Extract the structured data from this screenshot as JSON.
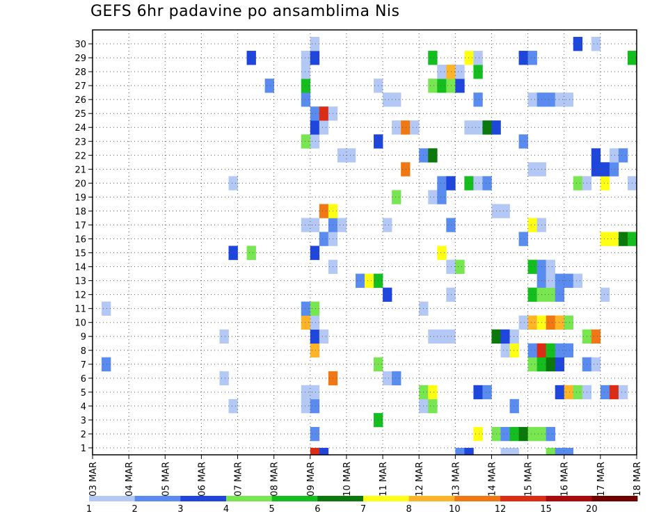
{
  "chart_data": {
    "type": "heatmap",
    "title": "GEFS 6hr padavine po ansamblima Nis",
    "xlabel": "",
    "ylabel": "",
    "x_ticks": [
      "03 MAR",
      "04 MAR",
      "05 MAR",
      "06 MAR",
      "07 MAR",
      "08 MAR",
      "09 MAR",
      "10 MAR",
      "11 MAR",
      "12 MAR",
      "13 MAR",
      "14 MAR",
      "15 MAR",
      "16 MAR",
      "17 MAR",
      "18 MAR"
    ],
    "y_ticks": [
      "1",
      "2",
      "3",
      "4",
      "5",
      "6",
      "7",
      "8",
      "9",
      "10",
      "11",
      "12",
      "13",
      "14",
      "15",
      "16",
      "17",
      "18",
      "19",
      "20",
      "21",
      "22",
      "23",
      "24",
      "25",
      "26",
      "27",
      "28",
      "29",
      "30"
    ],
    "x_steps": 60,
    "y_members": 30,
    "grid": true,
    "legend": {
      "placement": "bottom",
      "labels": [
        "1",
        "2",
        "3",
        "4",
        "5",
        "6",
        "7",
        "8",
        "10",
        "12",
        "15",
        "20"
      ],
      "colors": [
        "#b4c8f5",
        "#5a8cf0",
        "#1e46dc",
        "#78e650",
        "#14be1e",
        "#0a780a",
        "#ffff14",
        "#ffb428",
        "#f07814",
        "#dc2d14",
        "#aa0a0a",
        "#6e0000"
      ]
    },
    "cells": [
      [
        24,
        0,
        "#dc2d14"
      ],
      [
        25,
        0,
        "#1e46dc"
      ],
      [
        40,
        0,
        "#5a8cf0"
      ],
      [
        41,
        0,
        "#1e46dc"
      ],
      [
        45,
        0,
        "#b4c8f5"
      ],
      [
        46,
        0,
        "#b4c8f5"
      ],
      [
        50,
        0,
        "#78e650"
      ],
      [
        51,
        0,
        "#5a8cf0"
      ],
      [
        52,
        0,
        "#5a8cf0"
      ],
      [
        24,
        1,
        "#5a8cf0"
      ],
      [
        42,
        1,
        "#ffff14"
      ],
      [
        44,
        1,
        "#78e650"
      ],
      [
        45,
        1,
        "#5a8cf0"
      ],
      [
        46,
        1,
        "#14be1e"
      ],
      [
        47,
        1,
        "#0a780a"
      ],
      [
        48,
        1,
        "#78e650"
      ],
      [
        49,
        1,
        "#78e650"
      ],
      [
        50,
        1,
        "#5a8cf0"
      ],
      [
        31,
        2,
        "#14be1e"
      ],
      [
        15,
        3,
        "#b4c8f5"
      ],
      [
        23,
        3,
        "#b4c8f5"
      ],
      [
        24,
        3,
        "#5a8cf0"
      ],
      [
        36,
        3,
        "#b4c8f5"
      ],
      [
        37,
        3,
        "#78e650"
      ],
      [
        46,
        3,
        "#5a8cf0"
      ],
      [
        23,
        4,
        "#b4c8f5"
      ],
      [
        24,
        4,
        "#b4c8f5"
      ],
      [
        36,
        4,
        "#78e650"
      ],
      [
        37,
        4,
        "#ffff14"
      ],
      [
        42,
        4,
        "#1e46dc"
      ],
      [
        43,
        4,
        "#5a8cf0"
      ],
      [
        51,
        4,
        "#1e46dc"
      ],
      [
        52,
        4,
        "#ffb428"
      ],
      [
        53,
        4,
        "#78e650"
      ],
      [
        54,
        4,
        "#b4c8f5"
      ],
      [
        56,
        4,
        "#5a8cf0"
      ],
      [
        57,
        4,
        "#dc2d14"
      ],
      [
        58,
        4,
        "#b4c8f5"
      ],
      [
        14,
        5,
        "#b4c8f5"
      ],
      [
        26,
        5,
        "#f07814"
      ],
      [
        32,
        5,
        "#b4c8f5"
      ],
      [
        33,
        5,
        "#5a8cf0"
      ],
      [
        1,
        6,
        "#5a8cf0"
      ],
      [
        31,
        6,
        "#78e650"
      ],
      [
        48,
        6,
        "#78e650"
      ],
      [
        49,
        6,
        "#14be1e"
      ],
      [
        50,
        6,
        "#0a780a"
      ],
      [
        51,
        6,
        "#1e46dc"
      ],
      [
        54,
        6,
        "#5a8cf0"
      ],
      [
        55,
        6,
        "#b4c8f5"
      ],
      [
        24,
        7,
        "#ffb428"
      ],
      [
        45,
        7,
        "#b4c8f5"
      ],
      [
        46,
        7,
        "#ffff14"
      ],
      [
        48,
        7,
        "#5a8cf0"
      ],
      [
        49,
        7,
        "#dc2d14"
      ],
      [
        50,
        7,
        "#14be1e"
      ],
      [
        51,
        7,
        "#5a8cf0"
      ],
      [
        52,
        7,
        "#5a8cf0"
      ],
      [
        14,
        8,
        "#b4c8f5"
      ],
      [
        24,
        8,
        "#1e46dc"
      ],
      [
        25,
        8,
        "#b4c8f5"
      ],
      [
        37,
        8,
        "#b4c8f5"
      ],
      [
        38,
        8,
        "#b4c8f5"
      ],
      [
        39,
        8,
        "#b4c8f5"
      ],
      [
        44,
        8,
        "#0a780a"
      ],
      [
        45,
        8,
        "#1e46dc"
      ],
      [
        46,
        8,
        "#b4c8f5"
      ],
      [
        54,
        8,
        "#78e650"
      ],
      [
        55,
        8,
        "#f07814"
      ],
      [
        23,
        9,
        "#ffb428"
      ],
      [
        24,
        9,
        "#b4c8f5"
      ],
      [
        47,
        9,
        "#b4c8f5"
      ],
      [
        48,
        9,
        "#ffb428"
      ],
      [
        49,
        9,
        "#ffff14"
      ],
      [
        50,
        9,
        "#f07814"
      ],
      [
        51,
        9,
        "#ffb428"
      ],
      [
        52,
        9,
        "#78e650"
      ],
      [
        1,
        10,
        "#b4c8f5"
      ],
      [
        23,
        10,
        "#5a8cf0"
      ],
      [
        24,
        10,
        "#78e650"
      ],
      [
        36,
        10,
        "#b4c8f5"
      ],
      [
        32,
        11,
        "#1e46dc"
      ],
      [
        39,
        11,
        "#b4c8f5"
      ],
      [
        48,
        11,
        "#14be1e"
      ],
      [
        49,
        11,
        "#78e650"
      ],
      [
        50,
        11,
        "#78e650"
      ],
      [
        51,
        11,
        "#5a8cf0"
      ],
      [
        56,
        11,
        "#b4c8f5"
      ],
      [
        29,
        12,
        "#5a8cf0"
      ],
      [
        30,
        12,
        "#ffff14"
      ],
      [
        31,
        12,
        "#14be1e"
      ],
      [
        49,
        12,
        "#5a8cf0"
      ],
      [
        50,
        12,
        "#b4c8f5"
      ],
      [
        51,
        12,
        "#5a8cf0"
      ],
      [
        52,
        12,
        "#5a8cf0"
      ],
      [
        53,
        12,
        "#b4c8f5"
      ],
      [
        26,
        13,
        "#b4c8f5"
      ],
      [
        39,
        13,
        "#b4c8f5"
      ],
      [
        40,
        13,
        "#78e650"
      ],
      [
        48,
        13,
        "#14be1e"
      ],
      [
        49,
        13,
        "#5a8cf0"
      ],
      [
        50,
        13,
        "#b4c8f5"
      ],
      [
        15,
        14,
        "#1e46dc"
      ],
      [
        17,
        14,
        "#78e650"
      ],
      [
        24,
        14,
        "#1e46dc"
      ],
      [
        38,
        14,
        "#ffff14"
      ],
      [
        25,
        15,
        "#5a8cf0"
      ],
      [
        26,
        15,
        "#b4c8f5"
      ],
      [
        47,
        15,
        "#5a8cf0"
      ],
      [
        56,
        15,
        "#ffff14"
      ],
      [
        57,
        15,
        "#ffff14"
      ],
      [
        58,
        15,
        "#0a780a"
      ],
      [
        59,
        15,
        "#14be1e"
      ],
      [
        23,
        16,
        "#b4c8f5"
      ],
      [
        24,
        16,
        "#b4c8f5"
      ],
      [
        26,
        16,
        "#5a8cf0"
      ],
      [
        27,
        16,
        "#b4c8f5"
      ],
      [
        32,
        16,
        "#b4c8f5"
      ],
      [
        39,
        16,
        "#5a8cf0"
      ],
      [
        48,
        16,
        "#ffff14"
      ],
      [
        49,
        16,
        "#b4c8f5"
      ],
      [
        25,
        17,
        "#f07814"
      ],
      [
        26,
        17,
        "#ffff14"
      ],
      [
        44,
        17,
        "#b4c8f5"
      ],
      [
        45,
        17,
        "#b4c8f5"
      ],
      [
        33,
        18,
        "#78e650"
      ],
      [
        37,
        18,
        "#b4c8f5"
      ],
      [
        38,
        18,
        "#5a8cf0"
      ],
      [
        15,
        19,
        "#b4c8f5"
      ],
      [
        38,
        19,
        "#5a8cf0"
      ],
      [
        39,
        19,
        "#1e46dc"
      ],
      [
        41,
        19,
        "#14be1e"
      ],
      [
        42,
        19,
        "#b4c8f5"
      ],
      [
        43,
        19,
        "#5a8cf0"
      ],
      [
        53,
        19,
        "#78e650"
      ],
      [
        54,
        19,
        "#b4c8f5"
      ],
      [
        56,
        19,
        "#ffff14"
      ],
      [
        59,
        19,
        "#b4c8f5"
      ],
      [
        34,
        20,
        "#f07814"
      ],
      [
        48,
        20,
        "#b4c8f5"
      ],
      [
        49,
        20,
        "#b4c8f5"
      ],
      [
        55,
        20,
        "#1e46dc"
      ],
      [
        56,
        20,
        "#1e46dc"
      ],
      [
        57,
        20,
        "#5a8cf0"
      ],
      [
        27,
        21,
        "#b4c8f5"
      ],
      [
        28,
        21,
        "#b4c8f5"
      ],
      [
        36,
        21,
        "#5a8cf0"
      ],
      [
        37,
        21,
        "#0a780a"
      ],
      [
        55,
        21,
        "#1e46dc"
      ],
      [
        57,
        21,
        "#b4c8f5"
      ],
      [
        58,
        21,
        "#5a8cf0"
      ],
      [
        23,
        22,
        "#78e650"
      ],
      [
        24,
        22,
        "#b4c8f5"
      ],
      [
        31,
        22,
        "#1e46dc"
      ],
      [
        47,
        22,
        "#5a8cf0"
      ],
      [
        24,
        23,
        "#1e46dc"
      ],
      [
        25,
        23,
        "#b4c8f5"
      ],
      [
        33,
        23,
        "#b4c8f5"
      ],
      [
        34,
        23,
        "#f07814"
      ],
      [
        35,
        23,
        "#b4c8f5"
      ],
      [
        41,
        23,
        "#b4c8f5"
      ],
      [
        42,
        23,
        "#b4c8f5"
      ],
      [
        43,
        23,
        "#0a780a"
      ],
      [
        44,
        23,
        "#1e46dc"
      ],
      [
        24,
        24,
        "#5a8cf0"
      ],
      [
        25,
        24,
        "#dc2d14"
      ],
      [
        26,
        24,
        "#b4c8f5"
      ],
      [
        23,
        25,
        "#5a8cf0"
      ],
      [
        32,
        25,
        "#b4c8f5"
      ],
      [
        33,
        25,
        "#b4c8f5"
      ],
      [
        42,
        25,
        "#5a8cf0"
      ],
      [
        48,
        25,
        "#b4c8f5"
      ],
      [
        49,
        25,
        "#5a8cf0"
      ],
      [
        50,
        25,
        "#5a8cf0"
      ],
      [
        51,
        25,
        "#b4c8f5"
      ],
      [
        52,
        25,
        "#b4c8f5"
      ],
      [
        19,
        26,
        "#5a8cf0"
      ],
      [
        23,
        26,
        "#14be1e"
      ],
      [
        31,
        26,
        "#b4c8f5"
      ],
      [
        37,
        26,
        "#78e650"
      ],
      [
        38,
        26,
        "#14be1e"
      ],
      [
        39,
        26,
        "#78e650"
      ],
      [
        40,
        26,
        "#1e46dc"
      ],
      [
        23,
        27,
        "#b4c8f5"
      ],
      [
        38,
        27,
        "#b4c8f5"
      ],
      [
        39,
        27,
        "#ffb428"
      ],
      [
        40,
        27,
        "#b4c8f5"
      ],
      [
        42,
        27,
        "#14be1e"
      ],
      [
        17,
        28,
        "#1e46dc"
      ],
      [
        23,
        28,
        "#b4c8f5"
      ],
      [
        24,
        28,
        "#1e46dc"
      ],
      [
        37,
        28,
        "#14be1e"
      ],
      [
        41,
        28,
        "#ffff14"
      ],
      [
        42,
        28,
        "#b4c8f5"
      ],
      [
        47,
        28,
        "#1e46dc"
      ],
      [
        48,
        28,
        "#5a8cf0"
      ],
      [
        59,
        28,
        "#14be1e"
      ],
      [
        24,
        29,
        "#b4c8f5"
      ],
      [
        53,
        29,
        "#1e46dc"
      ],
      [
        55,
        29,
        "#b4c8f5"
      ]
    ]
  }
}
